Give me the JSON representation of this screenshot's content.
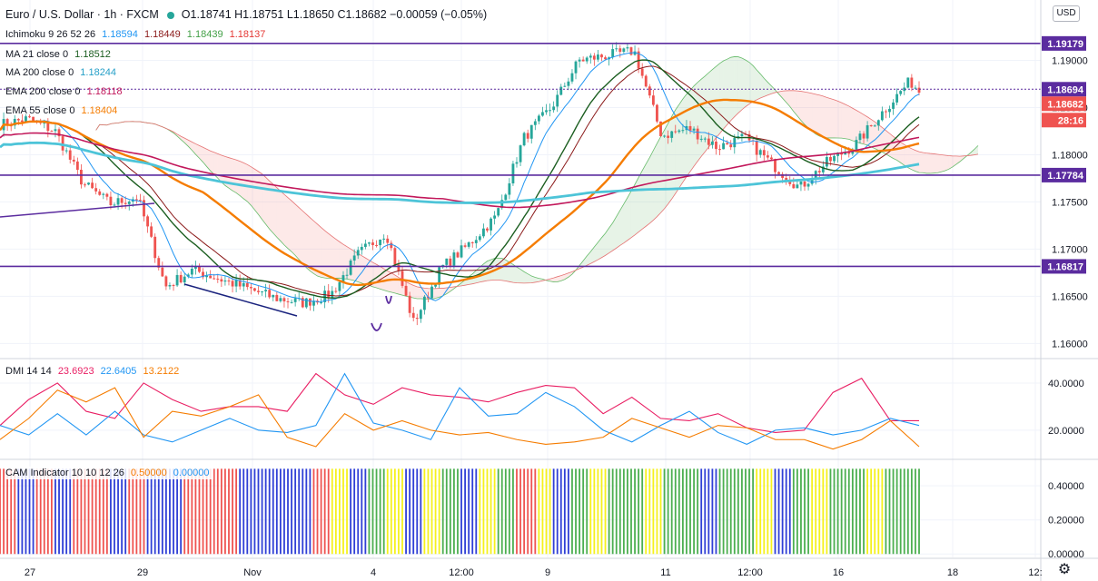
{
  "header": {
    "symbol": "Euro / U.S. Dollar · 1h · FXCM",
    "ohlc": "O1.18741 H1.18751 L1.18650 C1.18682 −0.00059 (−0.05%)"
  },
  "currency_button": "USD",
  "legends": {
    "ichimoku": {
      "name": "Ichimoku 9 26 52 26",
      "v1": "1.18594",
      "v2": "1.18449",
      "v3": "1.18439",
      "v4": "1.18137"
    },
    "ma21": {
      "name": "MA 21 close 0",
      "value": "1.18512"
    },
    "ma200": {
      "name": "MA 200 close 0",
      "value": "1.18244"
    },
    "ema200": {
      "name": "EMA 200 close 0",
      "value": "1.18118"
    },
    "ema55": {
      "name": "EMA 55 close 0",
      "value": "1.18404"
    },
    "dmi": {
      "name": "DMI 14 14",
      "plus": "23.6923",
      "minus": "22.6405",
      "adx": "13.2122"
    },
    "cam": {
      "name": "CAM Indicator 10 10 12 26",
      "v1": "0.50000",
      "v2": "0.00000"
    }
  },
  "colors": {
    "up": "#26a69a",
    "down": "#ef5350",
    "ma21": "#1b5e20",
    "ma200": "#4dc4d8",
    "ema200": "#c2185b",
    "ema55": "#f57c00",
    "ichimoku_tenkan": "#2196f3",
    "ichimoku_kijun": "#8b1a1a",
    "level": "#5b2c9f",
    "dmi_plus": "#e91e63",
    "dmi_minus": "#2196f3",
    "adx": "#f57c00"
  },
  "price_badges": [
    {
      "label": "1.19179",
      "value": 1.19179,
      "color": "#5b2c9f"
    },
    {
      "label": "1.18694",
      "value": 1.18694,
      "color": "#5b2c9f"
    },
    {
      "label": "1.18682",
      "value": 1.18682,
      "color": "#ef5350"
    },
    {
      "label": "28:16",
      "value": 1.18555,
      "color": "#ef5350"
    },
    {
      "label": "1.17784",
      "value": 1.17784,
      "color": "#5b2c9f"
    },
    {
      "label": "1.16817",
      "value": 1.16817,
      "color": "#5b2c9f"
    }
  ],
  "chart_data": {
    "type": "line",
    "instrument": "Euro / U.S. Dollar · 1h · FXCM",
    "x_tick_labels": [
      "27",
      "29",
      "Nov",
      "4",
      "12:00",
      "9",
      "11",
      "12:00",
      "16",
      "18",
      "12:"
    ],
    "y_ticks": [
      "1.19000",
      "1.18500",
      "1.18000",
      "1.17500",
      "1.17000",
      "1.16500",
      "1.16000"
    ],
    "y_tick_values": [
      1.19,
      1.185,
      1.18,
      1.175,
      1.17,
      1.165,
      1.16
    ],
    "ylim": [
      1.1585,
      1.1962
    ],
    "horizontal_levels": [
      1.19179,
      1.18694,
      1.17784,
      1.16817
    ],
    "close_series": {
      "name": "Close (approx.)",
      "x": [
        0,
        3,
        6,
        9,
        12,
        15,
        18,
        21,
        24,
        27,
        30,
        33,
        36,
        39,
        42,
        45,
        48,
        51,
        54,
        57,
        60,
        63,
        66,
        69,
        72,
        75,
        78,
        81,
        84,
        87,
        90,
        93,
        96,
        99,
        100
      ],
      "values": [
        1.1832,
        1.1838,
        1.1825,
        1.177,
        1.1748,
        1.1755,
        1.166,
        1.1678,
        1.1668,
        1.1658,
        1.1648,
        1.1643,
        1.1652,
        1.1695,
        1.1718,
        1.1622,
        1.168,
        1.1705,
        1.1735,
        1.1818,
        1.185,
        1.19,
        1.1905,
        1.191,
        1.182,
        1.1828,
        1.1808,
        1.1818,
        1.179,
        1.1765,
        1.1792,
        1.181,
        1.1845,
        1.1878,
        1.1868
      ]
    },
    "series": [
      {
        "name": "MA 21 close 0",
        "last": 1.18512
      },
      {
        "name": "MA 200 close 0",
        "last": 1.18244
      },
      {
        "name": "EMA 200 close 0",
        "last": 1.18118
      },
      {
        "name": "EMA 55 close 0",
        "last": 1.18404
      }
    ],
    "dmi": {
      "y_ticks": [
        "40.0000",
        "20.0000"
      ],
      "y_tick_values": [
        40,
        20
      ],
      "ylim": [
        8,
        50
      ],
      "plus_di": [
        22,
        33,
        40,
        28,
        25,
        40,
        33,
        28,
        30,
        30,
        28,
        44,
        35,
        31,
        38,
        35,
        34,
        32,
        36,
        39,
        38,
        27,
        34,
        25,
        24,
        27,
        21,
        19,
        20,
        36,
        42,
        24,
        24
      ],
      "minus_di": [
        22,
        18,
        27,
        18,
        28,
        18,
        15,
        20,
        25,
        20,
        19,
        22,
        44,
        23,
        20,
        16,
        38,
        26,
        27,
        36,
        30,
        20,
        15,
        22,
        28,
        19,
        14,
        20,
        21,
        18,
        20,
        25,
        22
      ],
      "adx": [
        16,
        25,
        37,
        32,
        38,
        17,
        28,
        26,
        30,
        35,
        17,
        13,
        27,
        20,
        24,
        20,
        18,
        19,
        16,
        14,
        15,
        17,
        25,
        21,
        17,
        22,
        21,
        16,
        16,
        12,
        16,
        24,
        13
      ]
    },
    "cam": {
      "y_ticks": [
        "0.40000",
        "0.20000",
        "0.00000"
      ],
      "y_tick_values": [
        0.4,
        0.2,
        0
      ],
      "ylim": [
        -0.02,
        0.55
      ],
      "bar_color_sequence": [
        "red",
        "blue",
        "red",
        "blue",
        "red",
        "red",
        "blue",
        "red",
        "blue",
        "blue",
        "red",
        "red",
        "red",
        "blue",
        "blue",
        "blue",
        "blue",
        "red",
        "yellow",
        "blue",
        "green",
        "yellow",
        "blue",
        "yellow",
        "green",
        "blue",
        "yellow",
        "green",
        "red",
        "yellow",
        "blue",
        "green",
        "yellow",
        "green",
        "green",
        "yellow",
        "green",
        "green",
        "blue",
        "green",
        "green",
        "yellow",
        "blue",
        "green",
        "yellow",
        "green",
        "green",
        "yellow",
        "green",
        "green"
      ]
    }
  }
}
